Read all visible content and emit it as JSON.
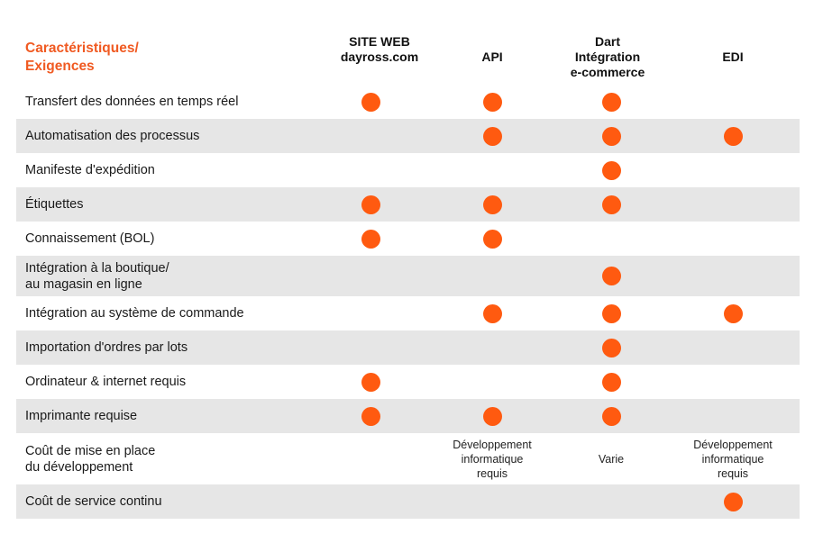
{
  "table": {
    "title": "Caractéristiques/\nExigences",
    "columns": [
      "SITE WEB\ndayross.com",
      "API",
      "Dart\nIntégration\ne-commerce",
      "EDI"
    ],
    "rows": [
      {
        "label": "Transfert des données en temps réel",
        "marks": [
          true,
          true,
          true,
          false
        ]
      },
      {
        "label": "Automatisation des processus",
        "marks": [
          false,
          true,
          true,
          true
        ]
      },
      {
        "label": "Manifeste d'expédition",
        "marks": [
          false,
          false,
          true,
          false
        ]
      },
      {
        "label": "Étiquettes",
        "marks": [
          true,
          true,
          true,
          false
        ]
      },
      {
        "label": "Connaissement (BOL)",
        "marks": [
          true,
          true,
          false,
          false
        ]
      },
      {
        "label": "Intégration à la boutique/\nau magasin en ligne",
        "marks": [
          false,
          false,
          true,
          false
        ]
      },
      {
        "label": "Intégration au système de commande",
        "marks": [
          false,
          true,
          true,
          true
        ]
      },
      {
        "label": "Importation d'ordres par lots",
        "marks": [
          false,
          false,
          true,
          false
        ]
      },
      {
        "label": "Ordinateur & internet requis",
        "marks": [
          true,
          false,
          true,
          false
        ]
      },
      {
        "label": "Imprimante requise",
        "marks": [
          true,
          true,
          true,
          false
        ]
      },
      {
        "label": "Coût de mise en place\ndu développement",
        "marks": [
          false,
          false,
          false,
          false
        ],
        "notes": [
          "",
          "Développement\ninformatique\nrequis",
          "Varie",
          "Développement\ninformatique\nrequis"
        ]
      },
      {
        "label": "Coût de service continu",
        "marks": [
          false,
          false,
          false,
          true
        ]
      }
    ]
  },
  "colors": {
    "accent": "#f05a22",
    "dot": "#ff5a10",
    "stripe": "#e6e6e6"
  }
}
